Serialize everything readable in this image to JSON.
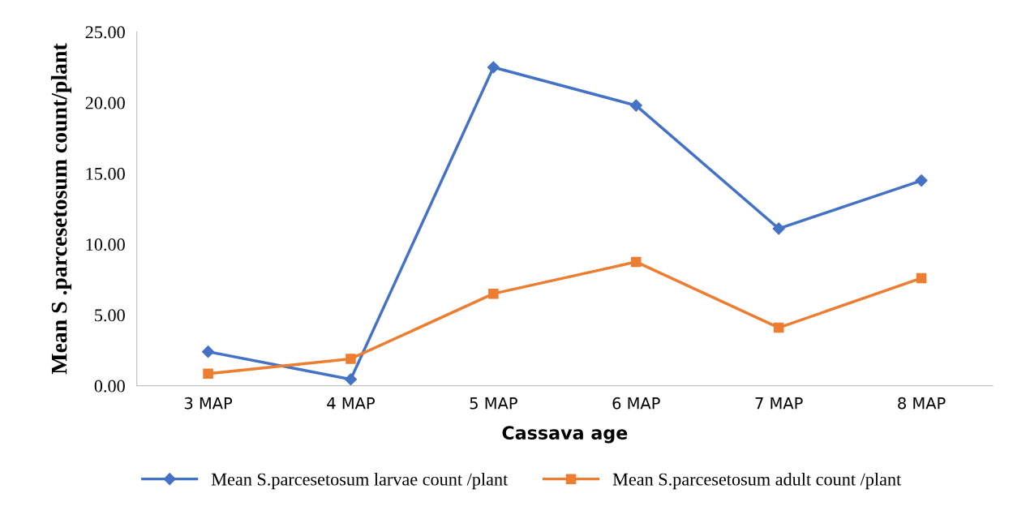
{
  "chart_data": {
    "type": "line",
    "xlabel": "Cassava age",
    "ylabel": "Mean S .parcesetosum count/plant",
    "categories": [
      "3 MAP",
      "4 MAP",
      "5 MAP",
      "6 MAP",
      "7 MAP",
      "8 MAP"
    ],
    "series": [
      {
        "name": "Mean S.parcesetosum larvae count /plant",
        "color": "#4472c4",
        "marker": "diamond",
        "values": [
          2.4,
          0.45,
          22.5,
          19.8,
          11.1,
          14.5
        ]
      },
      {
        "name": "Mean S.parcesetosum adult count /plant",
        "color": "#ed7d31",
        "marker": "square",
        "values": [
          0.85,
          1.9,
          6.5,
          8.75,
          4.1,
          7.6
        ]
      }
    ],
    "ylim": [
      0,
      25
    ],
    "yticks": [
      {
        "value": 0,
        "label": "0.00"
      },
      {
        "value": 5,
        "label": "5.00"
      },
      {
        "value": 10,
        "label": "10.00"
      },
      {
        "value": 15,
        "label": "15.00"
      },
      {
        "value": 20,
        "label": "20.00"
      },
      {
        "value": 25,
        "label": "25.00"
      }
    ],
    "grid": false,
    "legend": "bottom",
    "line_style": "solid"
  }
}
